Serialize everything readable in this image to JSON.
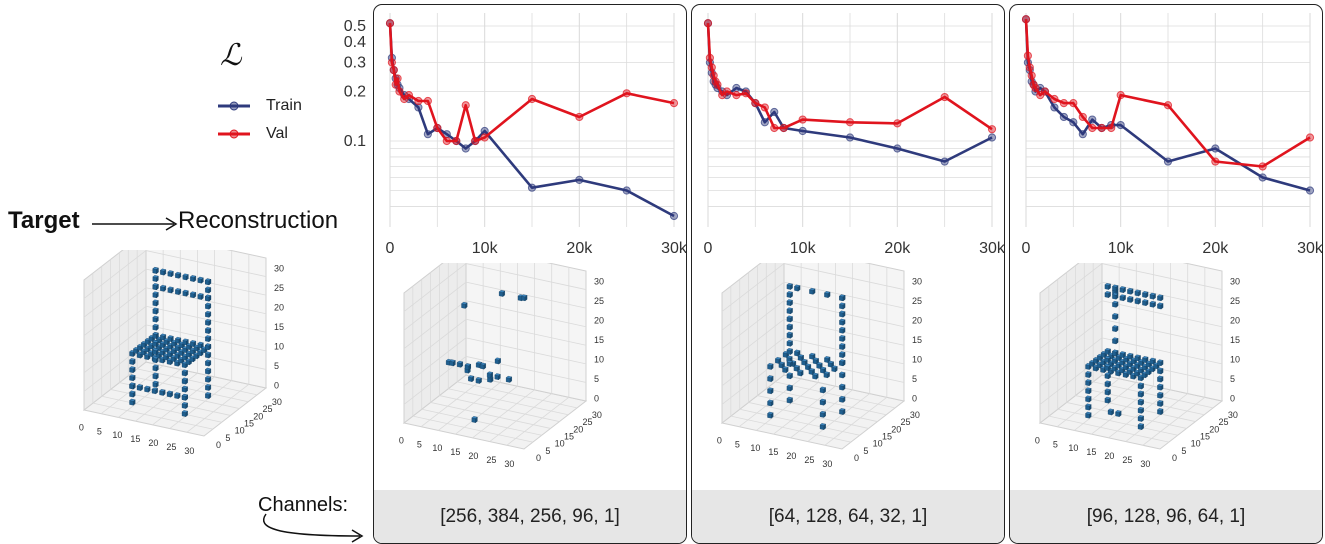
{
  "legend": {
    "symbol": "ℒ",
    "items": [
      {
        "label": "Train",
        "color": "#2e3a7c"
      },
      {
        "label": "Val",
        "color": "#e0141e"
      }
    ]
  },
  "target_label": "Target",
  "reconstruction_label": "Reconstruction",
  "channels_label": "Channels:",
  "colors": {
    "voxel": "#1f5f8f",
    "voxel_light": "#3a84bd",
    "grid": "#dcdcdc",
    "footer_bg": "#e6e6e6"
  },
  "voxel_axes": {
    "x_ticks": [
      "0",
      "5",
      "10",
      "15",
      "20",
      "25",
      "30"
    ],
    "y_ticks": [
      "0",
      "5",
      "10",
      "15",
      "20",
      "25",
      "30"
    ],
    "z_ticks": [
      "0",
      "5",
      "10",
      "15",
      "20",
      "25",
      "30"
    ]
  },
  "chart_data": [
    {
      "type": "line",
      "title": "",
      "xlabel": "",
      "ylabel": "",
      "yscale": "log",
      "xlim": [
        0,
        30000
      ],
      "ylim": [
        0.03,
        0.6
      ],
      "xticks": [
        0,
        10000,
        20000,
        30000
      ],
      "xticklabels": [
        "0",
        "10k",
        "20k",
        "30k"
      ],
      "yticks": [
        0.1,
        0.2,
        0.3,
        0.4,
        0.5
      ],
      "yticklabels": [
        "0.1",
        "0.2",
        "0.3",
        "0.4",
        "0.5"
      ],
      "grid": true,
      "channels": "[256, 384, 256, 96, 1]",
      "series": [
        {
          "name": "Train",
          "color": "#2e3a7c",
          "x": [
            0,
            200,
            400,
            600,
            800,
            1000,
            1500,
            2000,
            3000,
            4000,
            5000,
            6000,
            7000,
            8000,
            9000,
            10000,
            15000,
            20000,
            25000,
            30000
          ],
          "y": [
            0.52,
            0.32,
            0.27,
            0.24,
            0.22,
            0.21,
            0.19,
            0.18,
            0.16,
            0.11,
            0.12,
            0.11,
            0.1,
            0.09,
            0.1,
            0.115,
            0.052,
            0.058,
            0.05,
            0.035
          ]
        },
        {
          "name": "Val",
          "color": "#e0141e",
          "x": [
            0,
            200,
            400,
            600,
            800,
            1000,
            1500,
            2000,
            3000,
            4000,
            5000,
            6000,
            7000,
            8000,
            9000,
            10000,
            15000,
            20000,
            25000,
            30000
          ],
          "y": [
            0.52,
            0.3,
            0.27,
            0.22,
            0.24,
            0.2,
            0.18,
            0.19,
            0.175,
            0.175,
            0.12,
            0.1,
            0.1,
            0.165,
            0.1,
            0.105,
            0.18,
            0.14,
            0.195,
            0.17
          ]
        }
      ]
    },
    {
      "type": "line",
      "title": "",
      "xlabel": "",
      "ylabel": "",
      "yscale": "log",
      "xlim": [
        0,
        30000
      ],
      "ylim": [
        0.03,
        0.6
      ],
      "xticks": [
        0,
        10000,
        20000,
        30000
      ],
      "xticklabels": [
        "0",
        "10k",
        "20k",
        "30k"
      ],
      "grid": true,
      "channels": "[64, 128, 64, 32, 1]",
      "series": [
        {
          "name": "Train",
          "color": "#2e3a7c",
          "x": [
            0,
            200,
            400,
            600,
            800,
            1000,
            1500,
            2000,
            3000,
            4000,
            5000,
            6000,
            7000,
            8000,
            10000,
            15000,
            20000,
            25000,
            30000
          ],
          "y": [
            0.52,
            0.3,
            0.26,
            0.23,
            0.22,
            0.21,
            0.2,
            0.19,
            0.21,
            0.2,
            0.17,
            0.13,
            0.15,
            0.12,
            0.115,
            0.105,
            0.09,
            0.075,
            0.105
          ]
        },
        {
          "name": "Val",
          "color": "#e0141e",
          "x": [
            0,
            200,
            400,
            600,
            800,
            1000,
            1500,
            2000,
            3000,
            4000,
            5000,
            6000,
            7000,
            8000,
            10000,
            15000,
            20000,
            25000,
            30000
          ],
          "y": [
            0.52,
            0.32,
            0.28,
            0.25,
            0.23,
            0.22,
            0.19,
            0.2,
            0.19,
            0.195,
            0.17,
            0.16,
            0.12,
            0.12,
            0.135,
            0.13,
            0.128,
            0.185,
            0.118
          ]
        }
      ]
    },
    {
      "type": "line",
      "title": "",
      "xlabel": "",
      "ylabel": "",
      "yscale": "log",
      "xlim": [
        0,
        30000
      ],
      "ylim": [
        0.03,
        0.6
      ],
      "xticks": [
        0,
        10000,
        20000,
        30000
      ],
      "xticklabels": [
        "0",
        "10k",
        "20k",
        "30k"
      ],
      "grid": true,
      "channels": "[96, 128, 96, 64, 1]",
      "series": [
        {
          "name": "Train",
          "color": "#2e3a7c",
          "x": [
            0,
            200,
            400,
            600,
            800,
            1000,
            1500,
            2000,
            3000,
            4000,
            5000,
            6000,
            7000,
            8000,
            9000,
            10000,
            15000,
            20000,
            25000,
            30000
          ],
          "y": [
            0.55,
            0.3,
            0.27,
            0.23,
            0.22,
            0.2,
            0.21,
            0.2,
            0.16,
            0.14,
            0.13,
            0.11,
            0.135,
            0.12,
            0.125,
            0.125,
            0.075,
            0.09,
            0.06,
            0.05
          ]
        },
        {
          "name": "Val",
          "color": "#e0141e",
          "x": [
            0,
            200,
            400,
            600,
            800,
            1000,
            1500,
            2000,
            3000,
            4000,
            5000,
            6000,
            7000,
            8000,
            9000,
            10000,
            15000,
            20000,
            25000,
            30000
          ],
          "y": [
            0.55,
            0.33,
            0.28,
            0.25,
            0.22,
            0.21,
            0.19,
            0.2,
            0.18,
            0.17,
            0.17,
            0.14,
            0.12,
            0.12,
            0.12,
            0.19,
            0.165,
            0.075,
            0.07,
            0.105
          ]
        }
      ]
    }
  ]
}
